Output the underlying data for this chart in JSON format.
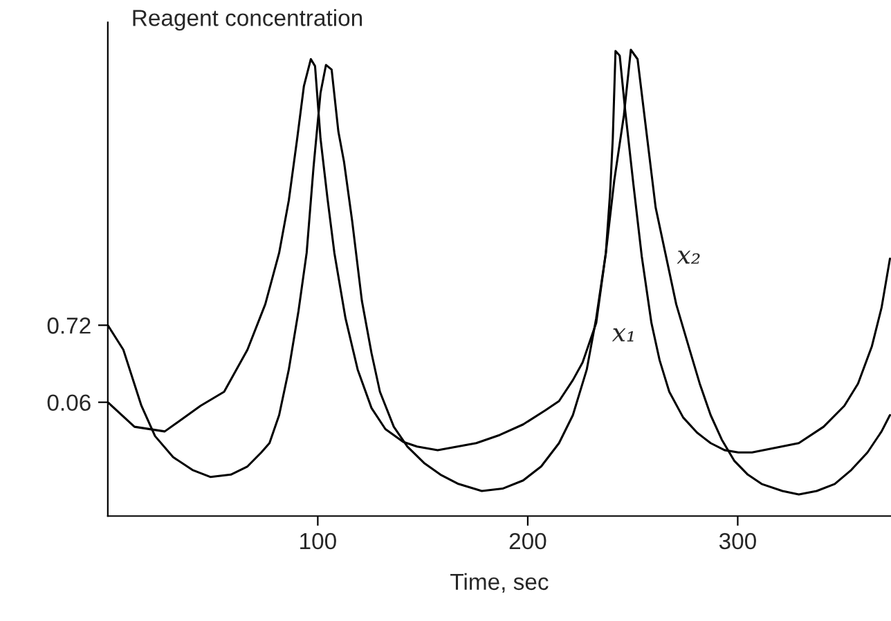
{
  "chart_data": {
    "type": "line",
    "ylabel": "Reagent concentration",
    "xlabel": "Time, sec",
    "xlim": [
      0,
      373
    ],
    "ylim": [
      -0.915,
      3.315
    ],
    "xticks": [
      100,
      200,
      300
    ],
    "yticks": [
      0.72,
      0.06
    ],
    "grid": false,
    "legend": false,
    "marker": "none",
    "line_style": "solid",
    "series": [
      {
        "name": "x₁",
        "color": "#000000",
        "x": [
          0,
          12.7,
          27.1,
          44.2,
          55.4,
          66.5,
          75.0,
          81.6,
          86.2,
          90.2,
          93.4,
          96.7,
          98.7,
          101.3,
          104.6,
          107.9,
          113.2,
          119.0,
          125.6,
          132.2,
          140.7,
          147.3,
          157.1,
          175.5,
          186.7,
          197.8,
          208.3,
          214.9,
          221.5,
          226.1,
          232.6,
          237.2,
          239.2,
          240.5,
          241.8,
          243.8,
          246.4,
          250.3,
          254.3,
          258.9,
          262.8,
          267.4,
          274.0,
          280.6,
          287.1,
          293.7,
          300.3,
          306.8,
          318.0,
          329.1,
          340.9,
          350.8,
          357.3,
          363.9,
          368.5,
          372.5
        ],
        "values": [
          0.06,
          -0.15,
          -0.19,
          0.03,
          0.15,
          0.51,
          0.9,
          1.34,
          1.79,
          2.32,
          2.77,
          3.0,
          2.94,
          2.32,
          1.81,
          1.34,
          0.78,
          0.34,
          0.01,
          -0.17,
          -0.28,
          -0.32,
          -0.35,
          -0.29,
          -0.22,
          -0.13,
          -0.01,
          0.07,
          0.25,
          0.4,
          0.74,
          1.34,
          1.85,
          2.32,
          3.07,
          3.03,
          2.56,
          1.93,
          1.31,
          0.74,
          0.42,
          0.15,
          -0.07,
          -0.2,
          -0.29,
          -0.35,
          -0.37,
          -0.37,
          -0.33,
          -0.29,
          -0.15,
          0.03,
          0.22,
          0.54,
          0.87,
          1.29
        ]
      },
      {
        "name": "x₂",
        "color": "#000000",
        "x": [
          0,
          7.4,
          16.0,
          22.5,
          31.1,
          40.3,
          48.8,
          58.6,
          66.5,
          73.1,
          77.0,
          81.6,
          86.2,
          90.8,
          94.7,
          98.0,
          101.3,
          103.9,
          106.6,
          109.8,
          112.5,
          116.4,
          121.0,
          125.6,
          129.6,
          136.2,
          142.7,
          150.6,
          158.4,
          167.0,
          178.1,
          188.0,
          197.8,
          206.4,
          214.9,
          221.5,
          228.1,
          232.6,
          237.2,
          241.2,
          245.8,
          249.1,
          252.3,
          256.9,
          260.9,
          265.5,
          270.7,
          276.6,
          281.9,
          287.1,
          292.4,
          298.3,
          304.8,
          311.4,
          321.3,
          329.1,
          337.6,
          346.2,
          354.1,
          361.8,
          368.5,
          372.5
        ],
        "values": [
          0.72,
          0.51,
          0.03,
          -0.23,
          -0.41,
          -0.52,
          -0.58,
          -0.56,
          -0.49,
          -0.37,
          -0.29,
          -0.05,
          0.34,
          0.84,
          1.34,
          2.08,
          2.71,
          2.95,
          2.91,
          2.38,
          2.12,
          1.61,
          0.93,
          0.48,
          0.15,
          -0.15,
          -0.32,
          -0.46,
          -0.56,
          -0.64,
          -0.7,
          -0.68,
          -0.61,
          -0.49,
          -0.29,
          -0.05,
          0.34,
          0.78,
          1.34,
          1.96,
          2.52,
          3.08,
          3.0,
          2.32,
          1.73,
          1.34,
          0.9,
          0.54,
          0.22,
          -0.05,
          -0.26,
          -0.44,
          -0.56,
          -0.64,
          -0.7,
          -0.73,
          -0.7,
          -0.64,
          -0.52,
          -0.37,
          -0.19,
          -0.05
        ]
      }
    ]
  }
}
